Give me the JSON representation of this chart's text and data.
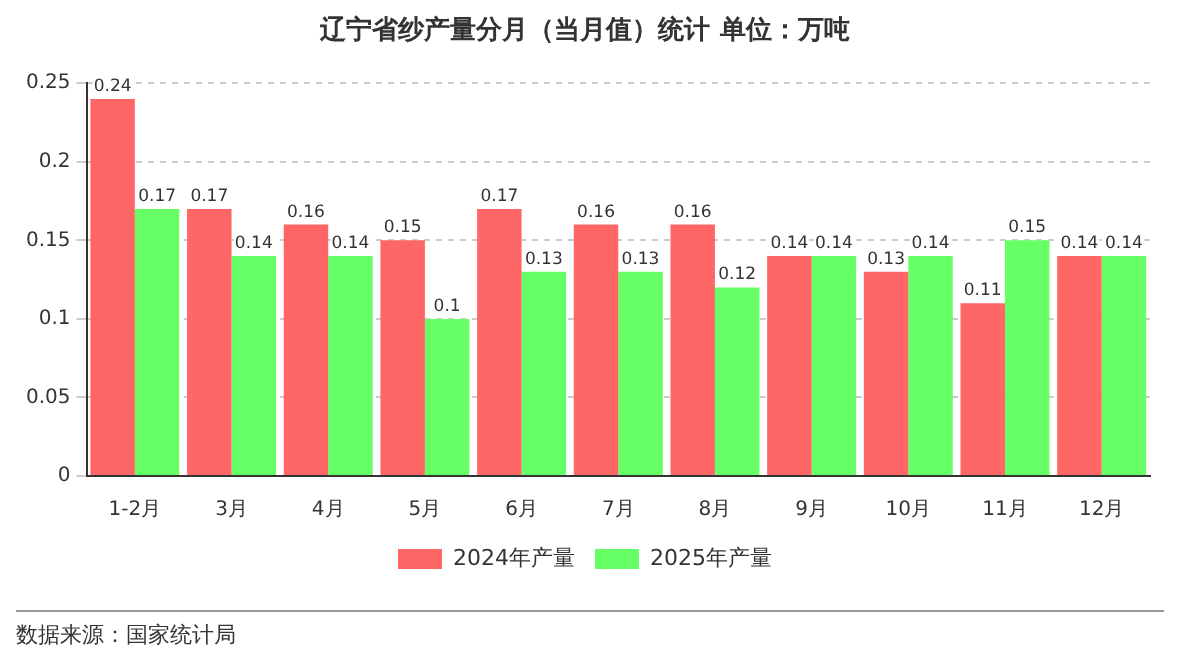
{
  "chart_data": {
    "type": "bar",
    "title": "辽宁省纱产量分月（当月值）统计 单位：万吨",
    "categories": [
      "1-2月",
      "3月",
      "4月",
      "5月",
      "6月",
      "7月",
      "8月",
      "9月",
      "10月",
      "11月",
      "12月"
    ],
    "series": [
      {
        "name": "2024年产量",
        "color": "#ff6666",
        "values": [
          0.24,
          0.17,
          0.16,
          0.15,
          0.17,
          0.16,
          0.16,
          0.14,
          0.13,
          0.11,
          0.14
        ]
      },
      {
        "name": "2025年产量",
        "color": "#66ff66",
        "values": [
          0.17,
          0.14,
          0.14,
          0.1,
          0.13,
          0.13,
          0.12,
          0.14,
          0.14,
          0.15,
          0.14
        ]
      }
    ],
    "ylim": [
      0,
      0.25
    ],
    "yticks": [
      0,
      0.05,
      0.1,
      0.15,
      0.2,
      0.25
    ],
    "grid": "y",
    "legend": "bottom",
    "data_labels": true,
    "annotations": [
      "数据来源：国家统计局"
    ]
  }
}
